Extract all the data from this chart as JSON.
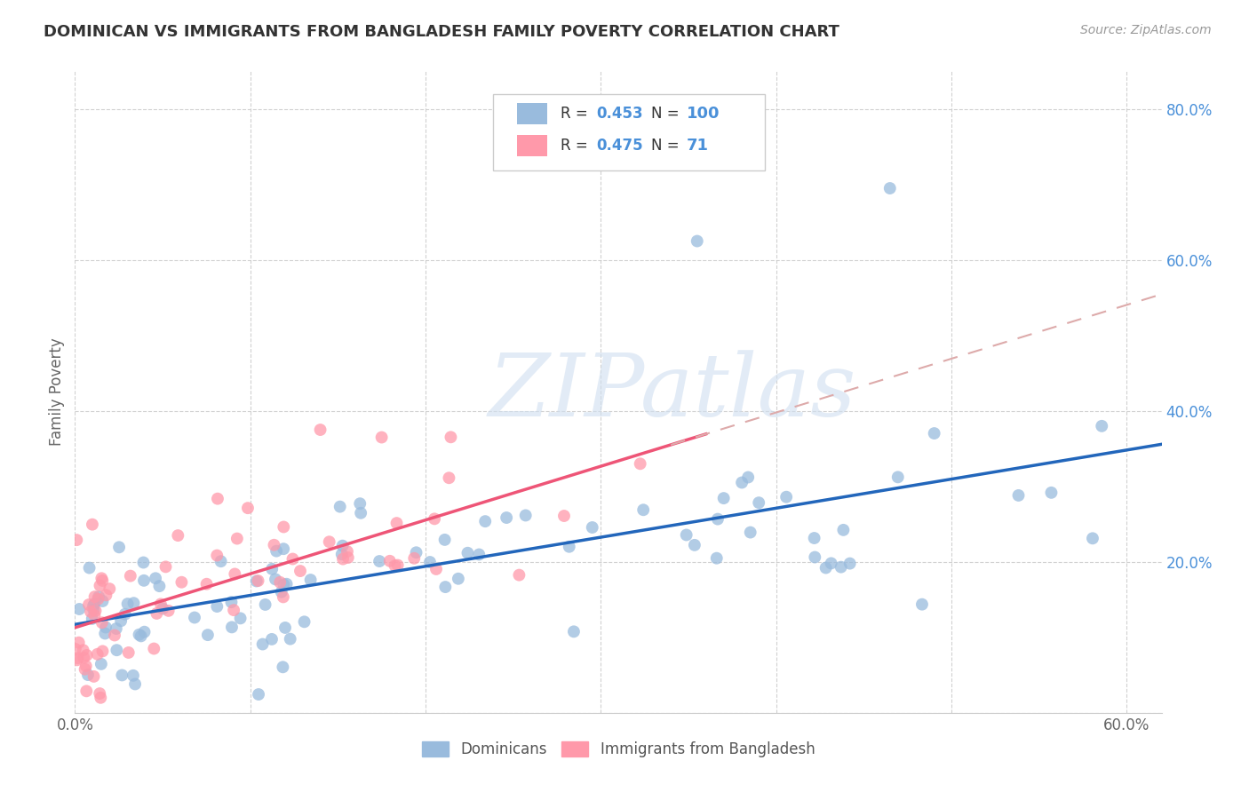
{
  "title": "DOMINICAN VS IMMIGRANTS FROM BANGLADESH FAMILY POVERTY CORRELATION CHART",
  "source": "Source: ZipAtlas.com",
  "ylabel": "Family Poverty",
  "xlim": [
    0.0,
    0.62
  ],
  "ylim": [
    0.0,
    0.85
  ],
  "xtick_positions": [
    0.0,
    0.1,
    0.2,
    0.3,
    0.4,
    0.5,
    0.6
  ],
  "xticklabels": [
    "0.0%",
    "",
    "",
    "",
    "",
    "",
    "60.0%"
  ],
  "ytick_positions": [
    0.0,
    0.2,
    0.4,
    0.6,
    0.8
  ],
  "yticklabels": [
    "",
    "20.0%",
    "40.0%",
    "60.0%",
    "80.0%"
  ],
  "blue_color": "#99bbdd",
  "pink_color": "#ff99aa",
  "line_blue": "#2266bb",
  "line_pink": "#ee5577",
  "line_pink_ext": "#ddaaaa",
  "R_blue": 0.453,
  "N_blue": 100,
  "R_pink": 0.475,
  "N_pink": 71,
  "watermark": "ZIPatlas",
  "tick_color": "#4a90d9",
  "grid_color": "#cccccc",
  "title_color": "#333333",
  "source_color": "#999999",
  "ylabel_color": "#666666"
}
